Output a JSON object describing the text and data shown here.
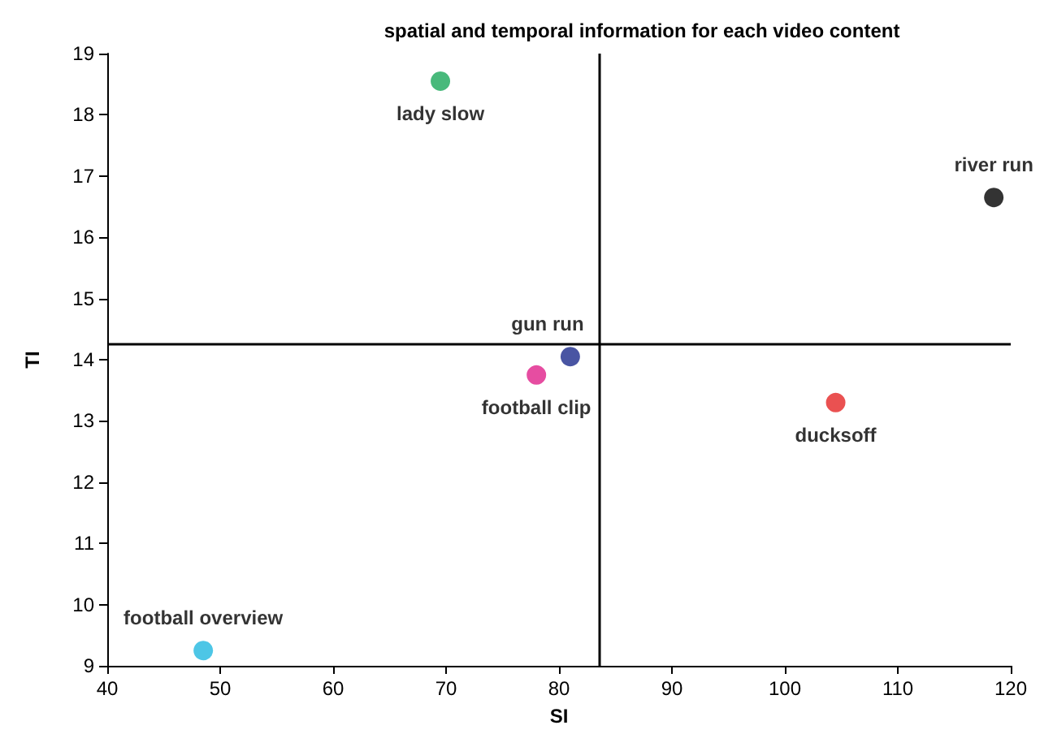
{
  "chart_data": {
    "type": "scatter",
    "title": "spatial and temporal information for each video content",
    "xlabel": "SI",
    "ylabel": "TI",
    "series": [
      {
        "name": "lady slow",
        "color": "#1aa85a",
        "x": [
          69.5
        ],
        "values": [
          18.55
        ]
      },
      {
        "name": "river run",
        "color": "#000000",
        "x": [
          118.5
        ],
        "values": [
          16.65
        ]
      },
      {
        "name": "gun run",
        "color": "#1c2a8c",
        "x": [
          81
        ],
        "values": [
          14.05
        ]
      },
      {
        "name": "football clip",
        "color": "#e0208a",
        "x": [
          78
        ],
        "values": [
          13.75
        ]
      },
      {
        "name": "ducksoff",
        "color": "#e52525",
        "x": [
          104.5
        ],
        "values": [
          13.3
        ]
      },
      {
        "name": "football overview",
        "color": "#20b8e0",
        "x": [
          48.5
        ],
        "values": [
          9.25
        ]
      }
    ],
    "xlim": [
      40,
      120
    ],
    "xticks": [
      40,
      50,
      60,
      70,
      80,
      90,
      100,
      110,
      120
    ],
    "ylim": [
      9,
      19
    ],
    "yticks": [
      9,
      10,
      11,
      12,
      13,
      14,
      15,
      16,
      17,
      18,
      19
    ],
    "ref_lines": [
      {
        "axis": "x",
        "value": 83.5,
        "color": "#000000"
      },
      {
        "axis": "y",
        "value": 14.25,
        "color": "#000000"
      }
    ],
    "grid": false,
    "legend": false,
    "marker": "circle"
  }
}
